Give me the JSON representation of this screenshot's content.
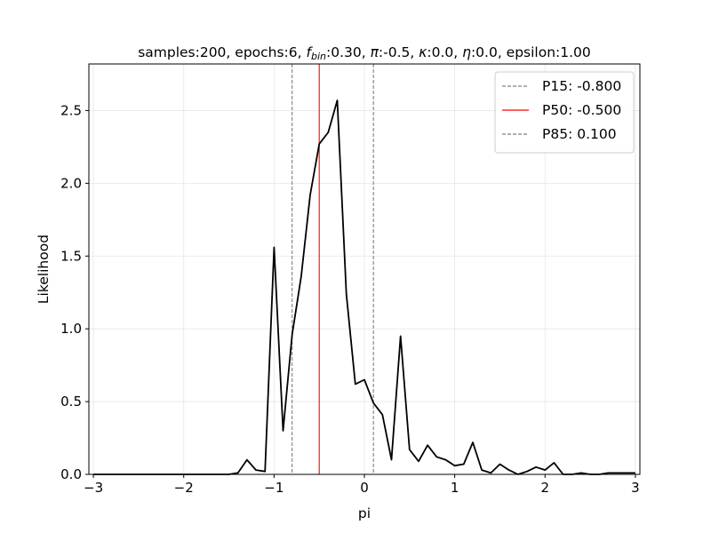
{
  "chart_data": {
    "type": "line",
    "title_parts": {
      "prefix": "samples:200, epochs:6, ",
      "f_sym": "f",
      "f_sub": "bin",
      "f_val": ":0.30, ",
      "pi_sym": "π",
      "pi_val": ":-0.5, ",
      "kappa_sym": "κ",
      "kappa_val": ":0.0, ",
      "eta_sym": "η",
      "eta_val": ":0.0, epsilon:1.00"
    },
    "xlabel": "pi",
    "ylabel": "Likelihood",
    "xlim": [
      -3.05,
      3.05
    ],
    "ylim": [
      0,
      2.82
    ],
    "x_ticks": [
      -3,
      -2,
      -1,
      0,
      1,
      2,
      3
    ],
    "x_tick_labels": [
      "−3",
      "−2",
      "−1",
      "0",
      "1",
      "2",
      "3"
    ],
    "y_ticks": [
      0,
      0.5,
      1,
      1.5,
      2,
      2.5
    ],
    "y_tick_labels": [
      "0.0",
      "0.5",
      "1.0",
      "1.5",
      "2.0",
      "2.5"
    ],
    "grid": true,
    "legend_position": "top-right",
    "series": [
      {
        "color": "#000000",
        "x": [
          -3.0,
          -2.9,
          -2.8,
          -2.7,
          -2.6,
          -2.5,
          -2.4,
          -2.3,
          -2.2,
          -2.1,
          -2.0,
          -1.9,
          -1.8,
          -1.7,
          -1.6,
          -1.5,
          -1.4,
          -1.3,
          -1.2,
          -1.1,
          -1.0,
          -0.9,
          -0.8,
          -0.7,
          -0.6,
          -0.5,
          -0.4,
          -0.3,
          -0.2,
          -0.1,
          0.0,
          0.1,
          0.2,
          0.3,
          0.4,
          0.5,
          0.6,
          0.7,
          0.8,
          0.9,
          1.0,
          1.1,
          1.2,
          1.3,
          1.4,
          1.5,
          1.6,
          1.7,
          1.8,
          1.9,
          2.0,
          2.1,
          2.2,
          2.3,
          2.4,
          2.5,
          2.6,
          2.7,
          2.8,
          2.9,
          3.0
        ],
        "values": [
          0.0,
          0.0,
          0.0,
          0.0,
          0.0,
          0.0,
          0.0,
          0.0,
          0.0,
          0.0,
          0.0,
          0.0,
          0.0,
          0.0,
          0.0,
          0.0,
          0.01,
          0.1,
          0.03,
          0.02,
          1.56,
          0.3,
          0.96,
          1.36,
          1.92,
          2.27,
          2.35,
          2.57,
          1.24,
          0.62,
          0.65,
          0.49,
          0.41,
          0.1,
          0.95,
          0.17,
          0.09,
          0.2,
          0.12,
          0.1,
          0.06,
          0.07,
          0.22,
          0.03,
          0.01,
          0.07,
          0.03,
          0.0,
          0.02,
          0.05,
          0.03,
          0.08,
          0.0,
          0.0,
          0.01,
          0.0,
          0.0,
          0.01,
          0.01,
          0.01,
          0.01
        ]
      }
    ],
    "vlines": [
      {
        "x": -0.8,
        "label": "P15: -0.800",
        "color": "#808080",
        "dash": true
      },
      {
        "x": -0.5,
        "label": "P50: -0.500",
        "color": "#ff0000",
        "dash": false
      },
      {
        "x": 0.1,
        "label": "P85: 0.100",
        "color": "#808080",
        "dash": true
      }
    ]
  }
}
